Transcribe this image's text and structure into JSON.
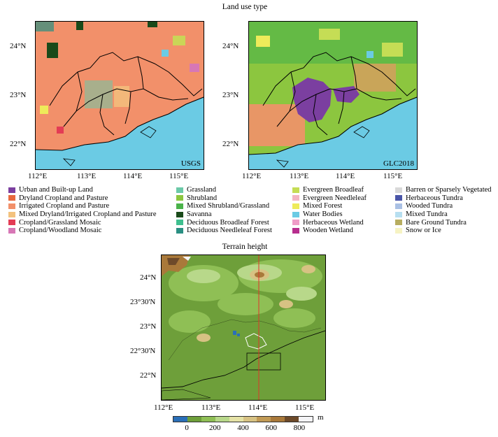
{
  "titles": {
    "top": "Land use type",
    "bottom": "Terrain height"
  },
  "panels": [
    {
      "label": "USGS"
    },
    {
      "label": "GLC2018"
    }
  ],
  "top_axes": {
    "lat_ticks": [
      "24°N",
      "23°N",
      "22°N"
    ],
    "lon_ticks": [
      "112°E",
      "113°E",
      "114°E",
      "115°E"
    ]
  },
  "bottom_axes": {
    "lat_ticks": [
      "24°N",
      "23°30'N",
      "23°N",
      "22°30'N",
      "22°N"
    ],
    "lon_ticks": [
      "112°E",
      "113°E",
      "114°E",
      "115°E"
    ]
  },
  "legend": [
    [
      {
        "label": "Urban and Built-up Land",
        "color": "#7b3fa0"
      },
      {
        "label": "Dryland Cropland and Pasture",
        "color": "#e8693e"
      },
      {
        "label": "Irrigated Cropland and Pasture",
        "color": "#f2906a"
      },
      {
        "label": "Mixed Dryland/Irrigated Cropland and Pasture",
        "color": "#f3c27e"
      },
      {
        "label": "Cropland/Grassland Mosaic",
        "color": "#e33c55"
      },
      {
        "label": "Cropland/Woodland Mosaic",
        "color": "#d777b6"
      }
    ],
    [
      {
        "label": "Grassland",
        "color": "#6cc9a8"
      },
      {
        "label": "Shrubland",
        "color": "#8cc63f"
      },
      {
        "label": "Mixed Shrubland/Grassland",
        "color": "#4ab34a"
      },
      {
        "label": "Savanna",
        "color": "#1a4a1a"
      },
      {
        "label": "Deciduous Broadleaf Forest",
        "color": "#3fbf8f"
      },
      {
        "label": "Deciduous Needleleaf Forest",
        "color": "#2a8f82"
      }
    ],
    [
      {
        "label": "Evergreen Broadleaf",
        "color": "#c5dd55"
      },
      {
        "label": "Evergreen Needleleaf",
        "color": "#f3b5c3"
      },
      {
        "label": "Mixed Forest",
        "color": "#eeeb5a"
      },
      {
        "label": "Water Bodies",
        "color": "#6bcbe4"
      },
      {
        "label": "Herbaceous Wetland",
        "color": "#ef9cc8"
      },
      {
        "label": "Wooden Wetland",
        "color": "#b72e8e"
      }
    ],
    [
      {
        "label": "Barren or Sparsely Vegetated",
        "color": "#d9d9d9"
      },
      {
        "label": "Herbaceous Tundra",
        "color": "#4a55a8"
      },
      {
        "label": "Wooded Tundra",
        "color": "#a9c0e4"
      },
      {
        "label": "Mixed Tundra",
        "color": "#b7dff0"
      },
      {
        "label": "Bare Ground Tundra",
        "color": "#b7ad5f"
      },
      {
        "label": "Snow or Ice",
        "color": "#f6f3c3"
      }
    ]
  ],
  "colorbar": {
    "unit": "m",
    "tick_labels": [
      "0",
      "200",
      "400",
      "600",
      "800"
    ],
    "tick_values": [
      0,
      200,
      400,
      600,
      800
    ],
    "min": -100,
    "max": 900,
    "colors": [
      "#2a6fb8",
      "#6e9f3a",
      "#8fbf55",
      "#b8d88a",
      "#e5e2a6",
      "#d7c283",
      "#c19a55",
      "#a9793a",
      "#6d4a2a",
      "#f4f4f6"
    ]
  }
}
